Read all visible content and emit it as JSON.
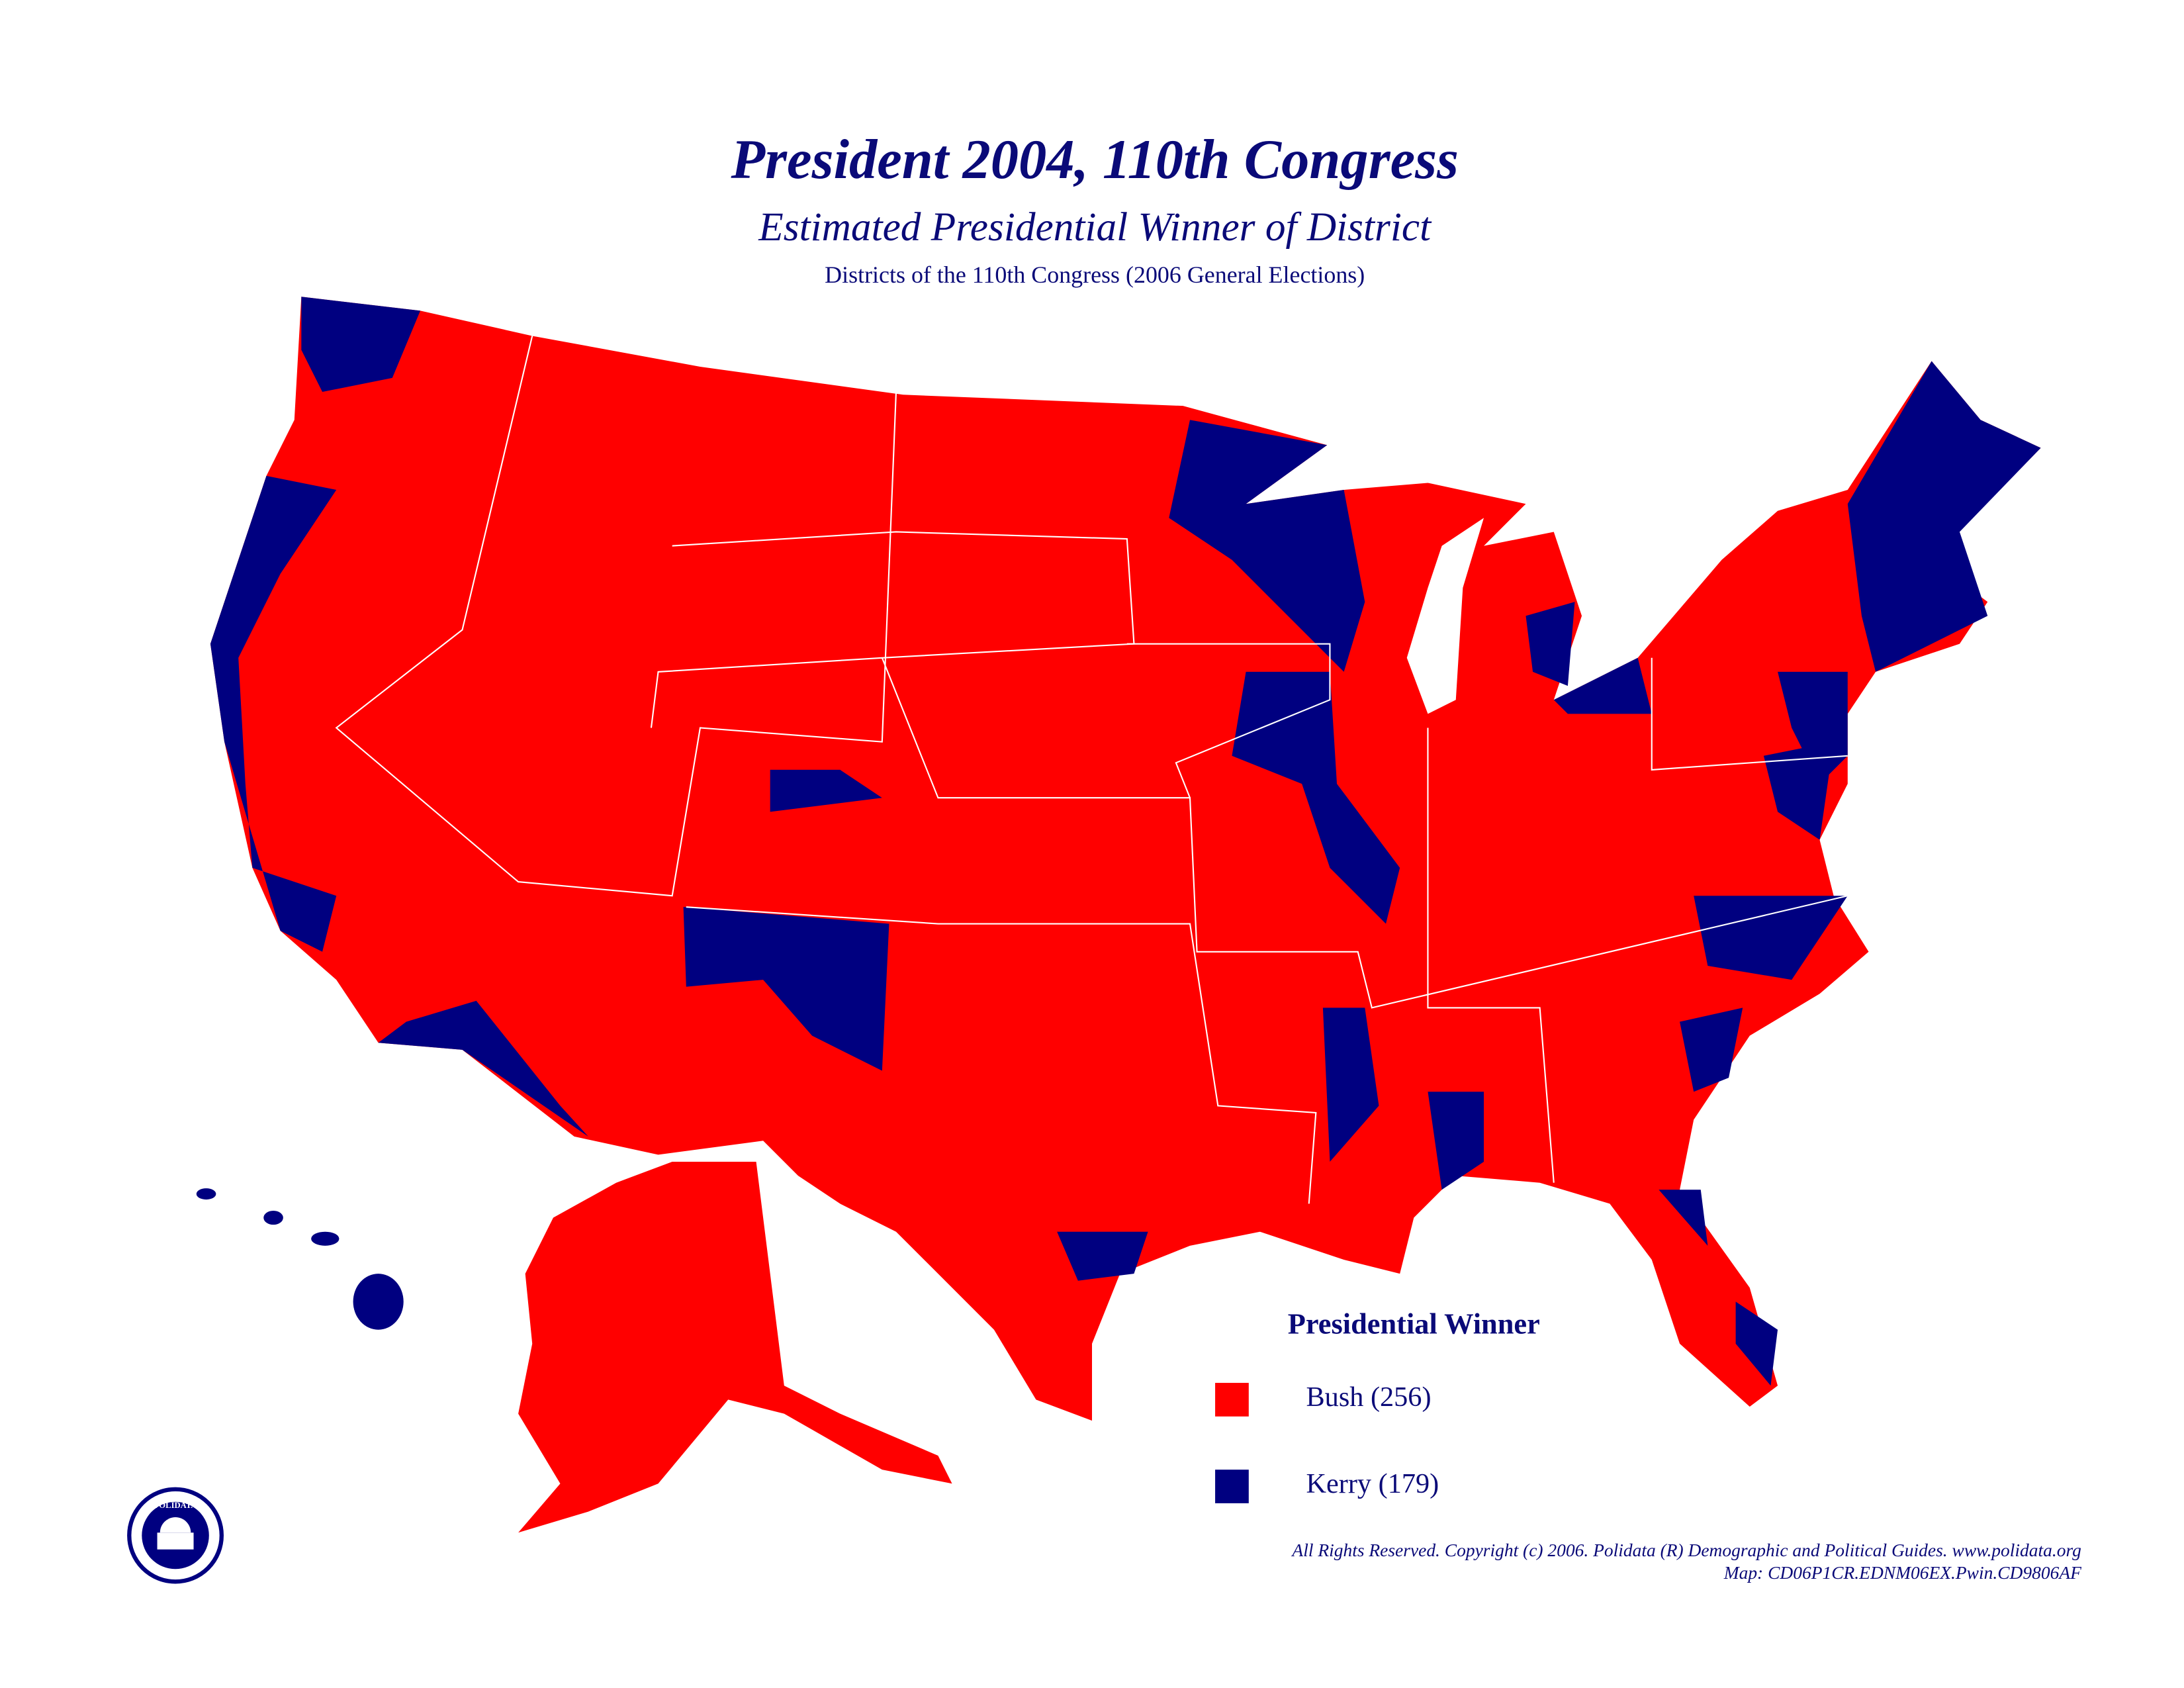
{
  "header": {
    "title": "President 2004, 110th Congress",
    "subtitle": "Estimated Presidential Winner of District",
    "note": "Districts of the 110th Congress (2006 General Elections)"
  },
  "legend": {
    "title": "Presidential Winner",
    "items": [
      {
        "label": "Bush (256)",
        "color": "#ff0000"
      },
      {
        "label": "Kerry (179)",
        "color": "#000080"
      }
    ]
  },
  "logo": {
    "text": "POLIDATA"
  },
  "footer": {
    "copyright": "All Rights Reserved. Copyright (c) 2006. Polidata (R) Demographic and Political Guides. www.polidata.org",
    "map_id": "Map: CD06P1CR.EDNM06EX.Pwin.CD9806AF"
  }
}
